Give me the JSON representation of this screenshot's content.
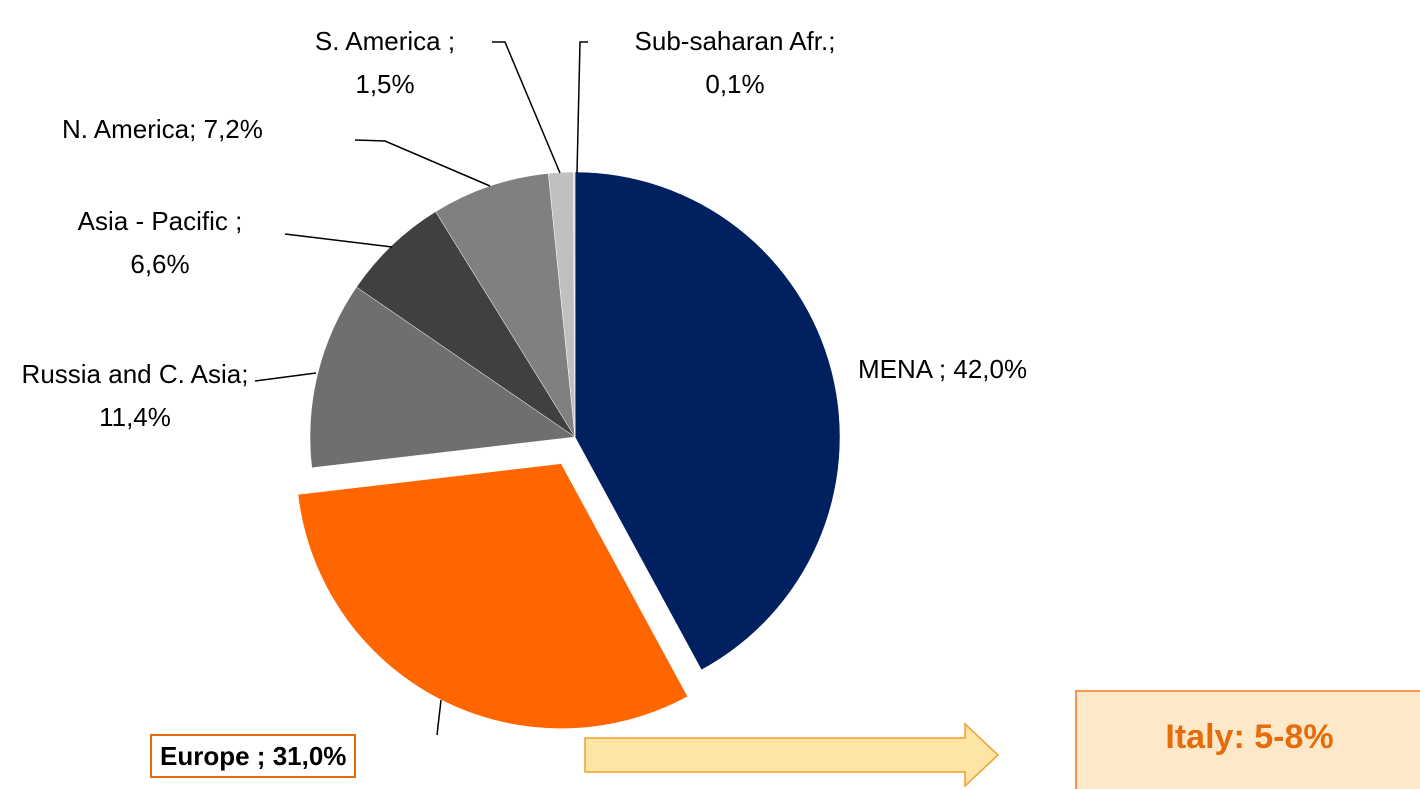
{
  "chart_data": {
    "type": "pie",
    "categories": [
      "MENA ;",
      "Europe ;",
      "Russia and C. Asia;",
      "Asia - Pacific ;",
      "N. America;",
      "S. America ;",
      "Sub-saharan Afr.;"
    ],
    "values": [
      42.0,
      31.0,
      11.4,
      6.6,
      7.2,
      1.5,
      0.1
    ],
    "value_labels": [
      "42,0%",
      "31,0%",
      "11,4%",
      "6,6%",
      "7,2%",
      "1,5%",
      "0,1%"
    ],
    "colors": [
      "#002060",
      "#ff6600",
      "#6f6f6f",
      "#404040",
      "#808080",
      "#c0c0c0",
      "#d9d9d9"
    ],
    "annotation": "Italy: 5-8%"
  }
}
